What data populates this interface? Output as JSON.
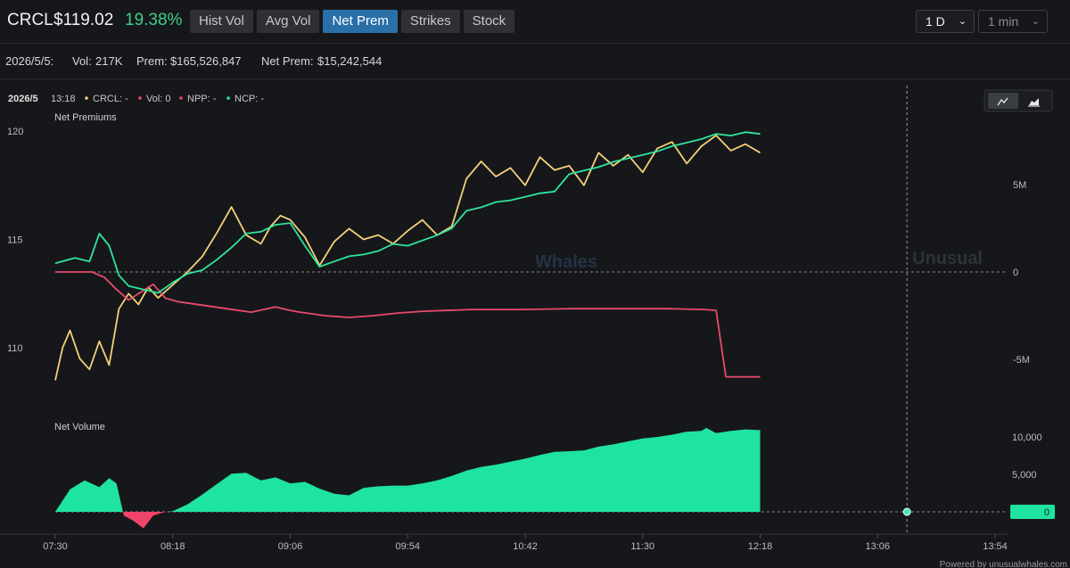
{
  "header": {
    "ticker": "CRCL",
    "price": "$119.02",
    "change": "19.38%",
    "tabs": [
      {
        "label": "Hist Vol",
        "active": false
      },
      {
        "label": "Avg Vol",
        "active": false
      },
      {
        "label": "Net Prem",
        "active": true
      },
      {
        "label": "Strikes",
        "active": false
      },
      {
        "label": "Stock",
        "active": false
      }
    ],
    "range_select": "1 D",
    "interval_select": "1 min"
  },
  "stats": {
    "date": "2026/5/5:",
    "vol_label": "Vol:",
    "vol_value": "217K",
    "prem_label": "Prem:",
    "prem_value": "$165,526,847",
    "netprem_label": "Net Prem:",
    "netprem_value": "$15,242,544"
  },
  "legend": {
    "date": "2026/5",
    "time": "13:18",
    "crcl": "CRCL: -",
    "vol": "Vol: 0",
    "npp": "NPP: -",
    "ncp": "NCP: -"
  },
  "icons": {
    "line": "line-chart-icon",
    "area": "area-chart-icon",
    "chevron": "chevron-down-icon"
  },
  "colors": {
    "price": "#f3d07a",
    "npp": "#e94a6a",
    "ncp": "#2ee59d",
    "volume_pos": "#1fe3a0",
    "volume_neg": "#f0456b",
    "accent": "#2a6fa8"
  },
  "watermark": {
    "part1": "Unusual",
    "part2": "Whales"
  },
  "footer": "Powered by unusualwhales.com",
  "chart_data": [
    {
      "type": "line",
      "title": "Net Premiums",
      "x_ticks": [
        "07:30",
        "08:18",
        "09:06",
        "09:54",
        "10:42",
        "11:30",
        "12:18",
        "13:06",
        "13:54"
      ],
      "x_range": [
        "07:30",
        "13:54"
      ],
      "y_left_ticks": [
        "120",
        "115",
        "110"
      ],
      "y_left_range": [
        107.0,
        121.0
      ],
      "y_right_ticks": [
        "5M",
        "0",
        "-5M"
      ],
      "y_right_range": [
        -10000000,
        8000000
      ],
      "zero_line": "dashed",
      "crosshair_time": "13:18",
      "series": [
        {
          "key": "price",
          "axis": "left",
          "x": [
            "07:30",
            "07:33",
            "07:36",
            "07:40",
            "07:44",
            "07:48",
            "07:52",
            "07:56",
            "08:00",
            "08:04",
            "08:08",
            "08:12",
            "08:18",
            "08:24",
            "08:30",
            "08:36",
            "08:42",
            "08:48",
            "08:54",
            "08:58",
            "09:02",
            "09:06",
            "09:12",
            "09:18",
            "09:24",
            "09:30",
            "09:36",
            "09:42",
            "09:48",
            "09:54",
            "10:00",
            "10:06",
            "10:12",
            "10:18",
            "10:24",
            "10:30",
            "10:36",
            "10:42",
            "10:48",
            "10:54",
            "11:00",
            "11:06",
            "11:12",
            "11:18",
            "11:24",
            "11:30",
            "11:36",
            "11:42",
            "11:48",
            "11:54",
            "12:00",
            "12:06",
            "12:12",
            "12:18"
          ],
          "y": [
            108.5,
            110.0,
            110.8,
            109.5,
            109.0,
            110.3,
            109.2,
            111.8,
            112.5,
            112.0,
            112.8,
            112.3,
            112.9,
            113.5,
            114.2,
            115.3,
            116.5,
            115.2,
            114.8,
            115.6,
            116.1,
            115.9,
            115.1,
            113.8,
            114.9,
            115.5,
            115.0,
            115.2,
            114.8,
            115.4,
            115.9,
            115.2,
            115.6,
            117.8,
            118.6,
            117.9,
            118.3,
            117.5,
            118.8,
            118.2,
            118.4,
            117.5,
            119.0,
            118.4,
            118.9,
            118.1,
            119.2,
            119.5,
            118.5,
            119.3,
            119.8,
            119.1,
            119.4,
            119.0
          ]
        },
        {
          "key": "NPP",
          "axis": "right",
          "x": [
            "07:30",
            "07:45",
            "07:50",
            "07:55",
            "08:00",
            "08:10",
            "08:15",
            "08:20",
            "08:30",
            "08:40",
            "08:50",
            "09:00",
            "09:06",
            "09:10",
            "09:15",
            "09:20",
            "09:30",
            "09:40",
            "09:50",
            "10:00",
            "10:20",
            "10:40",
            "11:00",
            "11:20",
            "11:40",
            "11:55",
            "12:00",
            "12:04",
            "12:18"
          ],
          "y": [
            0,
            0,
            -300000,
            -1000000,
            -1600000,
            -700000,
            -1500000,
            -1700000,
            -1900000,
            -2100000,
            -2300000,
            -2000000,
            -2200000,
            -2300000,
            -2400000,
            -2500000,
            -2600000,
            -2500000,
            -2350000,
            -2250000,
            -2150000,
            -2150000,
            -2100000,
            -2100000,
            -2100000,
            -2150000,
            -2200000,
            -6000000,
            -6000000
          ]
        },
        {
          "key": "NCP",
          "axis": "right",
          "x": [
            "07:30",
            "07:38",
            "07:44",
            "07:48",
            "07:52",
            "07:56",
            "08:00",
            "08:06",
            "08:12",
            "08:18",
            "08:24",
            "08:30",
            "08:36",
            "08:42",
            "08:48",
            "08:54",
            "09:00",
            "09:06",
            "09:12",
            "09:18",
            "09:24",
            "09:30",
            "09:36",
            "09:42",
            "09:48",
            "09:54",
            "10:00",
            "10:06",
            "10:12",
            "10:18",
            "10:24",
            "10:30",
            "10:36",
            "10:42",
            "10:48",
            "10:54",
            "11:00",
            "11:06",
            "11:12",
            "11:18",
            "11:24",
            "11:30",
            "11:36",
            "11:42",
            "11:48",
            "11:54",
            "12:00",
            "12:06",
            "12:12",
            "12:18"
          ],
          "y": [
            500000,
            800000,
            600000,
            2200000,
            1500000,
            -200000,
            -800000,
            -1000000,
            -1200000,
            -600000,
            -100000,
            100000,
            700000,
            1400000,
            2200000,
            2300000,
            2700000,
            2800000,
            1500000,
            300000,
            600000,
            900000,
            1000000,
            1200000,
            1600000,
            1500000,
            1800000,
            2100000,
            2500000,
            3500000,
            3700000,
            4000000,
            4100000,
            4300000,
            4500000,
            4600000,
            5600000,
            5800000,
            6000000,
            6300000,
            6500000,
            6700000,
            6900000,
            7200000,
            7400000,
            7600000,
            7900000,
            7800000,
            8000000,
            7900000
          ]
        }
      ]
    },
    {
      "type": "area",
      "title": "Net Volume",
      "x_ticks": [
        "07:30",
        "08:18",
        "09:06",
        "09:54",
        "10:42",
        "11:30",
        "12:18",
        "13:06",
        "13:54"
      ],
      "y_right_ticks": [
        "10,000",
        "5,000"
      ],
      "y_range": [
        -2600,
        12000
      ],
      "current_value": "0",
      "series": [
        {
          "key": "net_volume",
          "x": [
            "07:30",
            "07:36",
            "07:42",
            "07:48",
            "07:52",
            "07:55",
            "07:58",
            "08:02",
            "08:06",
            "08:10",
            "08:14",
            "08:18",
            "08:24",
            "08:30",
            "08:36",
            "08:42",
            "08:48",
            "08:54",
            "09:00",
            "09:06",
            "09:12",
            "09:18",
            "09:24",
            "09:30",
            "09:36",
            "09:42",
            "09:48",
            "09:54",
            "10:00",
            "10:06",
            "10:12",
            "10:18",
            "10:24",
            "10:30",
            "10:36",
            "10:42",
            "10:48",
            "10:54",
            "11:00",
            "11:06",
            "11:12",
            "11:18",
            "11:24",
            "11:30",
            "11:36",
            "11:42",
            "11:48",
            "11:54",
            "11:56",
            "12:00",
            "12:06",
            "12:12",
            "12:18"
          ],
          "y": [
            0,
            3000,
            4200,
            3300,
            4500,
            3800,
            -500,
            -1200,
            -2200,
            -500,
            -100,
            100,
            1000,
            2300,
            3700,
            5100,
            5200,
            4200,
            4600,
            3800,
            4000,
            3100,
            2400,
            2200,
            3200,
            3400,
            3500,
            3500,
            3800,
            4200,
            4800,
            5500,
            6000,
            6300,
            6700,
            7100,
            7600,
            8000,
            8100,
            8200,
            8700,
            9000,
            9400,
            9800,
            10000,
            10300,
            10700,
            10800,
            11200,
            10500,
            10800,
            11000,
            10900
          ]
        }
      ]
    }
  ]
}
